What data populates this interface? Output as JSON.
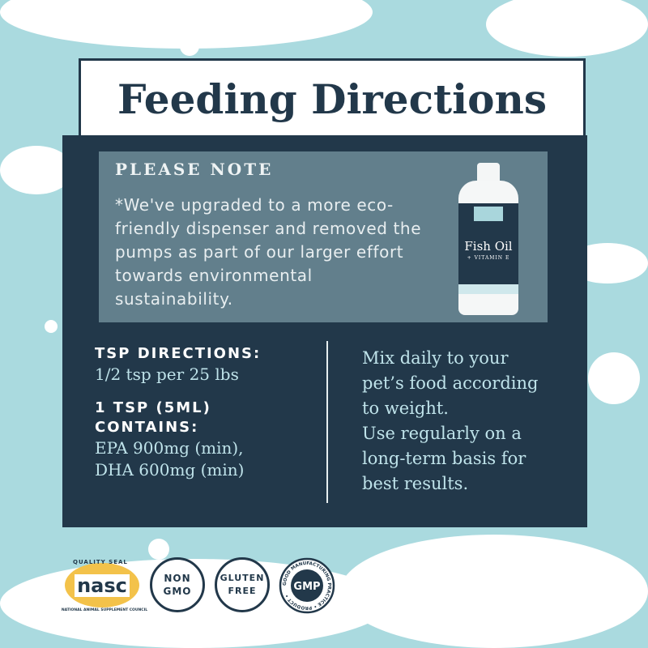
{
  "title": "Feeding Directions",
  "note": {
    "heading": "PLEASE NOTE",
    "text": "*We've upgraded to a more eco-friendly dispenser and removed the pumps as part of our larger effort towards environmental sustainability."
  },
  "product": {
    "name": "Fish Oil",
    "subtitle": "+ VITAMIN E"
  },
  "tsp_directions": {
    "heading": "TSP DIRECTIONS:",
    "value": "1/2 tsp per 25 lbs"
  },
  "contains": {
    "heading_1": "1 TSP (5ML)",
    "heading_2": "CONTAINS:",
    "line_1": "EPA 900mg (min),",
    "line_2": "DHA 600mg (min)"
  },
  "instructions": [
    "Mix daily to your",
    "pet’s food according",
    "to weight.",
    "Use regularly on a",
    "long-term basis for",
    "best results."
  ],
  "badges": {
    "nasc": {
      "top": "QUALITY SEAL",
      "logo": "nasc",
      "bottom": "NATIONAL ANIMAL SUPPLEMENT COUNCIL"
    },
    "non_gmo": [
      "NON",
      "GMO"
    ],
    "gluten_free": [
      "GLUTEN",
      "FREE"
    ],
    "gmp": {
      "center": "GMP",
      "ring": "GOOD MANUFACTURING PRACTICE • PRODUCT •"
    }
  },
  "colors": {
    "background": "#aadadf",
    "panel": "#22384a",
    "note_box": "#627f8c",
    "accent_text": "#bfe3ea"
  }
}
